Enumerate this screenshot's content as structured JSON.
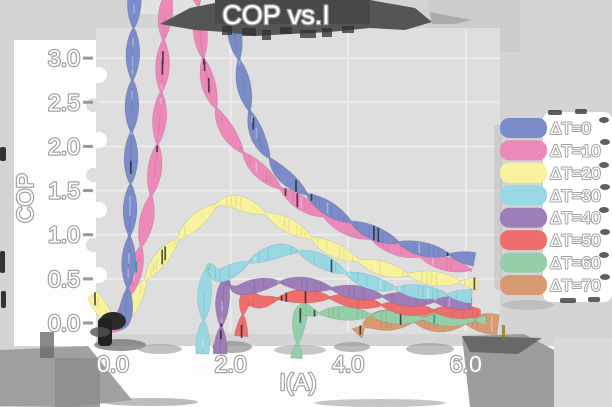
{
  "chart_data": {
    "type": "line",
    "title": "COP vs.I",
    "xlabel": "I(A)",
    "ylabel": "COP",
    "x_tick_labels": [
      "0.0",
      "2.0",
      "4.0",
      "6.0"
    ],
    "x_tick_values": [
      0,
      2,
      4,
      6
    ],
    "y_tick_labels": [
      "0.0",
      "0.5",
      "1.0",
      "1.5",
      "2.0",
      "2.5",
      "3.0"
    ],
    "y_tick_values": [
      0,
      0.5,
      1,
      1.5,
      2,
      2.5,
      3
    ],
    "xlim": [
      -0.3,
      6.8
    ],
    "ylim": [
      0,
      3.0
    ],
    "grid": true,
    "legend_position": "right",
    "style": "hand-drawn marker ribbons, peaks clipped above y-limit for dT=0 and dT=10",
    "series": [
      {
        "name": "ΔT=0",
        "color": "#7b8cc9",
        "band_scale": 1,
        "x": [
          -0.05,
          0.22,
          0.28,
          0.31,
          0.34,
          0.38,
          1.95,
          2.05,
          2.35,
          2.7,
          3.1,
          3.6,
          4.1,
          4.6,
          5.1,
          5.6,
          6.15
        ],
        "y": [
          0.08,
          -0.08,
          0.9,
          2.0,
          3.2,
          3.95,
          3.95,
          3.3,
          2.25,
          1.8,
          1.55,
          1.32,
          1.12,
          0.97,
          0.86,
          0.79,
          0.72
        ]
      },
      {
        "name": "ΔT=10",
        "color": "#ec89b8",
        "band_scale": 1,
        "x": [
          -0.12,
          0.1,
          0.45,
          0.7,
          0.82,
          0.9,
          1.42,
          1.5,
          1.65,
          1.9,
          2.3,
          2.7,
          3.1,
          3.6,
          4.1,
          4.6,
          5.1,
          5.6,
          6.1
        ],
        "y": [
          0.06,
          -0.1,
          0.75,
          1.6,
          2.5,
          3.9,
          3.9,
          3.1,
          2.6,
          2.2,
          1.85,
          1.6,
          1.4,
          1.2,
          1.04,
          0.9,
          0.78,
          0.68,
          0.6
        ]
      },
      {
        "name": "ΔT=20",
        "color": "#f7f29b",
        "band_scale": 1,
        "x": [
          -0.35,
          0.08,
          0.5,
          0.95,
          1.4,
          1.9,
          2.4,
          2.9,
          3.4,
          3.9,
          4.4,
          4.9,
          5.5,
          6.2
        ],
        "y": [
          0.32,
          -0.12,
          0.45,
          0.85,
          1.15,
          1.42,
          1.3,
          1.14,
          0.95,
          0.78,
          0.65,
          0.56,
          0.5,
          0.44
        ]
      },
      {
        "name": "ΔT=30",
        "color": "#97d8e3",
        "band_scale": 1,
        "x": [
          1.52,
          1.58,
          1.75,
          2.1,
          2.6,
          3.0,
          3.5,
          4.0,
          4.5,
          5.0,
          5.5,
          6.1
        ],
        "y": [
          -0.35,
          0.75,
          0.5,
          0.62,
          0.78,
          0.85,
          0.72,
          0.55,
          0.43,
          0.37,
          0.33,
          0.3
        ]
      },
      {
        "name": "ΔT=40",
        "color": "#9d7eb8",
        "band_scale": 1,
        "x": [
          1.82,
          1.88,
          2.05,
          2.4,
          2.8,
          3.3,
          3.8,
          4.3,
          4.8,
          5.4,
          6.1
        ],
        "y": [
          -0.35,
          0.55,
          0.35,
          0.42,
          0.47,
          0.44,
          0.38,
          0.33,
          0.28,
          0.25,
          0.22
        ]
      },
      {
        "name": "ΔT=50",
        "color": "#ee6e6e",
        "band_scale": 1,
        "x": [
          2.18,
          2.24,
          2.45,
          2.8,
          3.2,
          3.7,
          4.2,
          4.7,
          5.2,
          5.8,
          6.25
        ],
        "y": [
          -0.15,
          0.35,
          0.22,
          0.28,
          0.31,
          0.29,
          0.24,
          0.19,
          0.15,
          0.13,
          0.12
        ]
      },
      {
        "name": "ΔT=60",
        "color": "#94cfa9",
        "band_scale": 1,
        "x": [
          3.12,
          3.18,
          3.4,
          3.7,
          4.2,
          4.7,
          5.2,
          5.8,
          6.35
        ],
        "y": [
          -0.4,
          0.2,
          0.1,
          0.12,
          0.1,
          0.07,
          0.05,
          0.04,
          0.03
        ]
      },
      {
        "name": "ΔT=70",
        "color": "#d89a71",
        "band_scale": 1.5,
        "x": [
          4.15,
          4.35,
          4.8,
          5.3,
          5.8,
          6.3,
          6.55
        ],
        "y": [
          -0.12,
          0.02,
          0.04,
          0.02,
          0.01,
          0.0,
          -0.02
        ]
      }
    ]
  }
}
